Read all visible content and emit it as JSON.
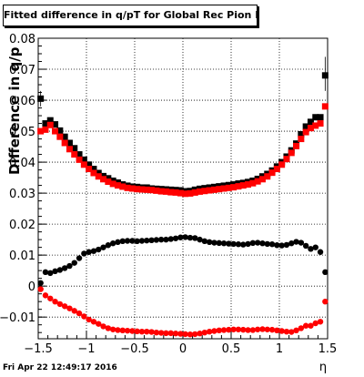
{
  "chart_data": {
    "type": "scatter",
    "title": "Fitted difference in q/pT for Global Rec Pion EtapT",
    "xlabel": "η",
    "ylabel": "Difference in q/p",
    "xlim": [
      -1.5,
      1.5
    ],
    "ylim": [
      -0.017,
      0.08
    ],
    "xticks": [
      -1.5,
      -1,
      -0.5,
      0,
      0.5,
      1,
      1.5
    ],
    "xtick_labels": [
      "−1.5",
      "−1",
      "−0.5",
      "0",
      "0.5",
      "1",
      "1.5"
    ],
    "yticks": [
      -0.01,
      0,
      0.01,
      0.02,
      0.03,
      0.04,
      0.05,
      0.06,
      0.07,
      0.08
    ],
    "ytick_labels": [
      "−0.01",
      "0",
      "0.01",
      "0.02",
      "0.03",
      "0.04",
      "0.05",
      "0.06",
      "0.07",
      "0.08"
    ],
    "grid": true,
    "footer": "Fri Apr 22 12:49:17 2016",
    "series": [
      {
        "marker": "square",
        "color": "#000000",
        "x": [
          -1.475,
          -1.425,
          -1.375,
          -1.325,
          -1.275,
          -1.225,
          -1.175,
          -1.125,
          -1.075,
          -1.025,
          -0.975,
          -0.925,
          -0.875,
          -0.825,
          -0.775,
          -0.725,
          -0.675,
          -0.625,
          -0.575,
          -0.525,
          -0.475,
          -0.425,
          -0.375,
          -0.325,
          -0.275,
          -0.225,
          -0.175,
          -0.125,
          -0.075,
          -0.025,
          0.025,
          0.075,
          0.125,
          0.175,
          0.225,
          0.275,
          0.325,
          0.375,
          0.425,
          0.475,
          0.525,
          0.575,
          0.625,
          0.675,
          0.725,
          0.775,
          0.825,
          0.875,
          0.925,
          0.975,
          1.025,
          1.075,
          1.125,
          1.175,
          1.225,
          1.275,
          1.325,
          1.375,
          1.425,
          1.475
        ],
        "y": [
          0.0605,
          0.0525,
          0.0535,
          0.0522,
          0.0502,
          0.0482,
          0.0462,
          0.0445,
          0.0425,
          0.0408,
          0.0392,
          0.0378,
          0.0365,
          0.0355,
          0.0348,
          0.034,
          0.0334,
          0.0328,
          0.0324,
          0.0321,
          0.032,
          0.0318,
          0.0318,
          0.0315,
          0.0314,
          0.0313,
          0.0312,
          0.0311,
          0.031,
          0.0309,
          0.0306,
          0.0307,
          0.0311,
          0.0314,
          0.0316,
          0.0318,
          0.032,
          0.0322,
          0.0324,
          0.0326,
          0.0328,
          0.0331,
          0.0333,
          0.0336,
          0.034,
          0.0346,
          0.0354,
          0.0362,
          0.0373,
          0.0386,
          0.04,
          0.0418,
          0.0438,
          0.046,
          0.049,
          0.0515,
          0.053,
          0.0545,
          0.0545,
          0.068
        ]
      },
      {
        "marker": "square",
        "color": "#ff0000",
        "x": [
          -1.475,
          -1.425,
          -1.375,
          -1.325,
          -1.275,
          -1.225,
          -1.175,
          -1.125,
          -1.075,
          -1.025,
          -0.975,
          -0.925,
          -0.875,
          -0.825,
          -0.775,
          -0.725,
          -0.675,
          -0.625,
          -0.575,
          -0.525,
          -0.475,
          -0.425,
          -0.375,
          -0.325,
          -0.275,
          -0.225,
          -0.175,
          -0.125,
          -0.075,
          -0.025,
          0.025,
          0.075,
          0.125,
          0.175,
          0.225,
          0.275,
          0.325,
          0.375,
          0.425,
          0.475,
          0.525,
          0.575,
          0.625,
          0.675,
          0.725,
          0.775,
          0.825,
          0.875,
          0.925,
          0.975,
          1.025,
          1.075,
          1.125,
          1.175,
          1.225,
          1.275,
          1.325,
          1.375,
          1.425,
          1.475
        ],
        "y": [
          0.05,
          0.0505,
          0.052,
          0.05,
          0.0482,
          0.0462,
          0.0442,
          0.0425,
          0.0408,
          0.0392,
          0.0378,
          0.0365,
          0.0354,
          0.0345,
          0.0337,
          0.033,
          0.0325,
          0.0321,
          0.0317,
          0.0315,
          0.0313,
          0.0312,
          0.0311,
          0.031,
          0.0308,
          0.0306,
          0.0305,
          0.0303,
          0.0302,
          0.03,
          0.0298,
          0.0299,
          0.0302,
          0.0305,
          0.0307,
          0.0309,
          0.0311,
          0.0313,
          0.0315,
          0.0317,
          0.0319,
          0.0322,
          0.0325,
          0.0328,
          0.0332,
          0.0338,
          0.0345,
          0.0354,
          0.0366,
          0.0378,
          0.0392,
          0.041,
          0.043,
          0.0452,
          0.0475,
          0.0497,
          0.051,
          0.0518,
          0.0525,
          0.058
        ]
      },
      {
        "marker": "circle",
        "color": "#000000",
        "x": [
          -1.475,
          -1.425,
          -1.375,
          -1.325,
          -1.275,
          -1.225,
          -1.175,
          -1.125,
          -1.075,
          -1.025,
          -0.975,
          -0.925,
          -0.875,
          -0.825,
          -0.775,
          -0.725,
          -0.675,
          -0.625,
          -0.575,
          -0.525,
          -0.475,
          -0.425,
          -0.375,
          -0.325,
          -0.275,
          -0.225,
          -0.175,
          -0.125,
          -0.075,
          -0.025,
          0.025,
          0.075,
          0.125,
          0.175,
          0.225,
          0.275,
          0.325,
          0.375,
          0.425,
          0.475,
          0.525,
          0.575,
          0.625,
          0.675,
          0.725,
          0.775,
          0.825,
          0.875,
          0.925,
          0.975,
          1.025,
          1.075,
          1.125,
          1.175,
          1.225,
          1.275,
          1.325,
          1.375,
          1.425,
          1.475
        ],
        "y": [
          0.001,
          0.0045,
          0.0042,
          0.0048,
          0.0052,
          0.0058,
          0.0065,
          0.0075,
          0.009,
          0.0105,
          0.011,
          0.0113,
          0.0118,
          0.0125,
          0.0132,
          0.0138,
          0.0142,
          0.0145,
          0.0146,
          0.0146,
          0.0145,
          0.0146,
          0.0147,
          0.0148,
          0.0149,
          0.015,
          0.015,
          0.0152,
          0.0154,
          0.0157,
          0.0158,
          0.0156,
          0.0155,
          0.015,
          0.0145,
          0.0142,
          0.014,
          0.0139,
          0.0138,
          0.0137,
          0.0136,
          0.0135,
          0.0134,
          0.0136,
          0.0139,
          0.014,
          0.0138,
          0.0136,
          0.0135,
          0.0132,
          0.0131,
          0.0133,
          0.0138,
          0.0143,
          0.014,
          0.013,
          0.012,
          0.0125,
          0.011,
          0.0045
        ]
      },
      {
        "marker": "circle",
        "color": "#ff0000",
        "x": [
          -1.475,
          -1.425,
          -1.375,
          -1.325,
          -1.275,
          -1.225,
          -1.175,
          -1.125,
          -1.075,
          -1.025,
          -0.975,
          -0.925,
          -0.875,
          -0.825,
          -0.775,
          -0.725,
          -0.675,
          -0.625,
          -0.575,
          -0.525,
          -0.475,
          -0.425,
          -0.375,
          -0.325,
          -0.275,
          -0.225,
          -0.175,
          -0.125,
          -0.075,
          -0.025,
          0.025,
          0.075,
          0.125,
          0.175,
          0.225,
          0.275,
          0.325,
          0.375,
          0.425,
          0.475,
          0.525,
          0.575,
          0.625,
          0.675,
          0.725,
          0.775,
          0.825,
          0.875,
          0.925,
          0.975,
          1.025,
          1.075,
          1.125,
          1.175,
          1.225,
          1.275,
          1.325,
          1.375,
          1.425,
          1.475
        ],
        "y": [
          -0.001,
          -0.003,
          -0.004,
          -0.005,
          -0.0058,
          -0.0065,
          -0.0072,
          -0.008,
          -0.0088,
          -0.0098,
          -0.0108,
          -0.0115,
          -0.0122,
          -0.013,
          -0.0136,
          -0.014,
          -0.0142,
          -0.0143,
          -0.0144,
          -0.0145,
          -0.0146,
          -0.0147,
          -0.0147,
          -0.0148,
          -0.015,
          -0.0151,
          -0.0152,
          -0.0152,
          -0.0153,
          -0.0154,
          -0.0155,
          -0.0156,
          -0.0155,
          -0.0153,
          -0.015,
          -0.0147,
          -0.0145,
          -0.0143,
          -0.0142,
          -0.0141,
          -0.014,
          -0.014,
          -0.0141,
          -0.0142,
          -0.0142,
          -0.014,
          -0.0139,
          -0.014,
          -0.0141,
          -0.0143,
          -0.0145,
          -0.0147,
          -0.0148,
          -0.0143,
          -0.0136,
          -0.0128,
          -0.0128,
          -0.012,
          -0.0115,
          -0.005
        ]
      }
    ]
  }
}
